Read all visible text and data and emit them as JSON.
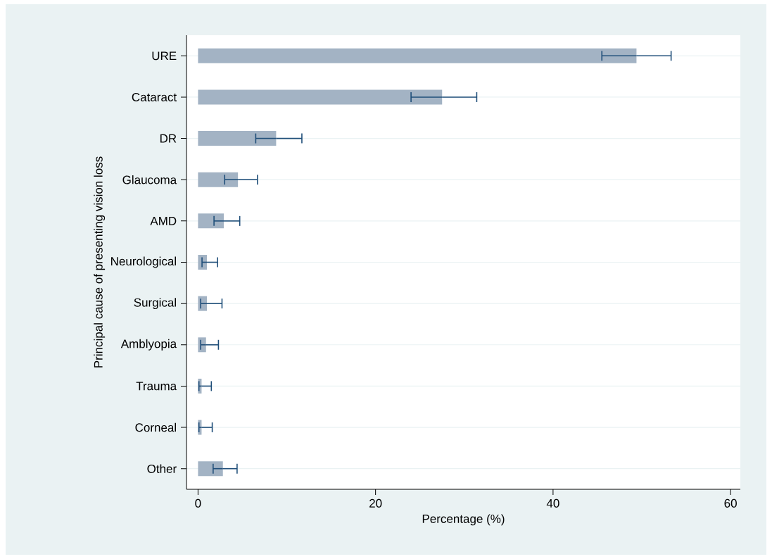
{
  "chart_data": {
    "type": "bar",
    "orientation": "horizontal",
    "xlabel": "Percentage (%)",
    "ylabel": "Principal cause of presenting vision loss",
    "categories": [
      "URE",
      "Cataract",
      "DR",
      "Glaucoma",
      "AMD",
      "Neurological",
      "Surgical",
      "Amblyopia",
      "Trauma",
      "Corneal",
      "Other"
    ],
    "values": [
      49.4,
      27.5,
      8.8,
      4.5,
      2.9,
      1.0,
      1.0,
      0.9,
      0.4,
      0.4,
      2.8
    ],
    "errors": [
      [
        45.5,
        53.3
      ],
      [
        24.0,
        31.4
      ],
      [
        6.5,
        11.7
      ],
      [
        3.0,
        6.7
      ],
      [
        1.8,
        4.7
      ],
      [
        0.45,
        2.2
      ],
      [
        0.3,
        2.7
      ],
      [
        0.3,
        2.3
      ],
      [
        0.1,
        1.5
      ],
      [
        0.1,
        1.6
      ],
      [
        1.7,
        4.4
      ]
    ],
    "color": "#a3b3c4",
    "xlim": [
      -1.3,
      61.1
    ],
    "xticks": [
      0,
      20,
      40,
      60
    ],
    "grid": "y"
  }
}
